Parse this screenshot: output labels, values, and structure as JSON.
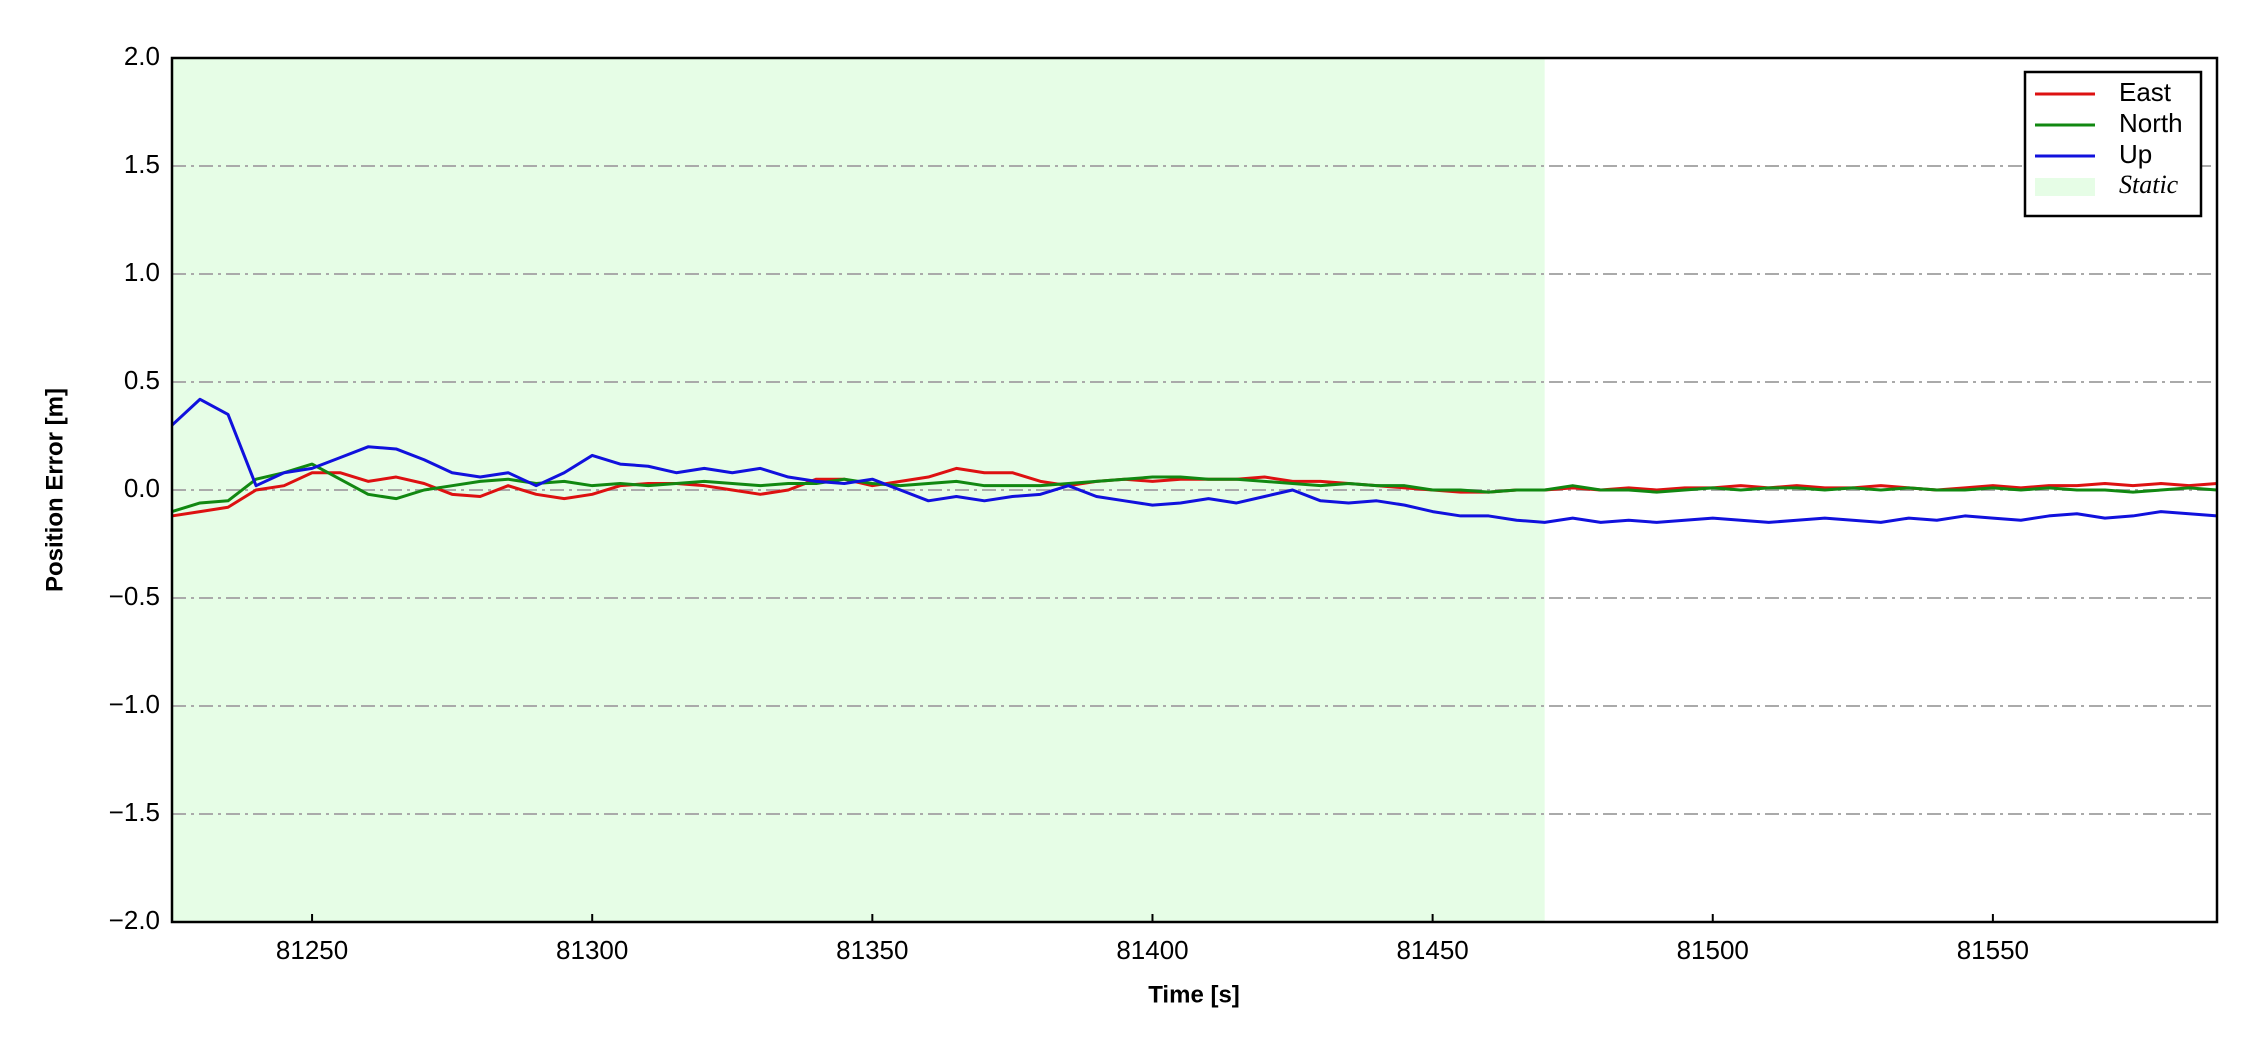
{
  "chart_data": {
    "type": "line",
    "xlabel": "Time [s]",
    "ylabel": "Position Error [m]",
    "x": [
      81225,
      81230,
      81235,
      81240,
      81245,
      81250,
      81255,
      81260,
      81265,
      81270,
      81275,
      81280,
      81285,
      81290,
      81295,
      81300,
      81305,
      81310,
      81315,
      81320,
      81325,
      81330,
      81335,
      81340,
      81345,
      81350,
      81355,
      81360,
      81365,
      81370,
      81375,
      81380,
      81385,
      81390,
      81395,
      81400,
      81405,
      81410,
      81415,
      81420,
      81425,
      81430,
      81435,
      81440,
      81445,
      81450,
      81455,
      81460,
      81465,
      81470,
      81475,
      81480,
      81485,
      81490,
      81495,
      81500,
      81505,
      81510,
      81515,
      81520,
      81525,
      81530,
      81535,
      81540,
      81545,
      81550,
      81555,
      81560,
      81565,
      81570,
      81575,
      81580,
      81585,
      81590
    ],
    "series": [
      {
        "name": "East",
        "color": "#dd1111",
        "values": [
          -0.12,
          -0.1,
          -0.08,
          0.0,
          0.02,
          0.08,
          0.08,
          0.04,
          0.06,
          0.03,
          -0.02,
          -0.03,
          0.02,
          -0.02,
          -0.04,
          -0.02,
          0.02,
          0.03,
          0.03,
          0.02,
          0.0,
          -0.02,
          0.0,
          0.05,
          0.05,
          0.02,
          0.04,
          0.06,
          0.1,
          0.08,
          0.08,
          0.04,
          0.02,
          0.04,
          0.05,
          0.04,
          0.05,
          0.05,
          0.05,
          0.06,
          0.04,
          0.04,
          0.03,
          0.02,
          0.01,
          0.0,
          -0.01,
          -0.01,
          0.0,
          0.0,
          0.01,
          0.0,
          0.01,
          0.0,
          0.01,
          0.01,
          0.02,
          0.01,
          0.02,
          0.01,
          0.01,
          0.02,
          0.01,
          0.0,
          0.01,
          0.02,
          0.01,
          0.02,
          0.02,
          0.03,
          0.02,
          0.03,
          0.02,
          0.03
        ]
      },
      {
        "name": "North",
        "color": "#118811",
        "values": [
          -0.1,
          -0.06,
          -0.05,
          0.05,
          0.08,
          0.12,
          0.05,
          -0.02,
          -0.04,
          0.0,
          0.02,
          0.04,
          0.05,
          0.03,
          0.04,
          0.02,
          0.03,
          0.02,
          0.03,
          0.04,
          0.03,
          0.02,
          0.03,
          0.03,
          0.05,
          0.03,
          0.02,
          0.03,
          0.04,
          0.02,
          0.02,
          0.02,
          0.03,
          0.04,
          0.05,
          0.06,
          0.06,
          0.05,
          0.05,
          0.04,
          0.03,
          0.02,
          0.03,
          0.02,
          0.02,
          0.0,
          0.0,
          -0.01,
          0.0,
          0.0,
          0.02,
          0.0,
          0.0,
          -0.01,
          0.0,
          0.01,
          0.0,
          0.01,
          0.01,
          0.0,
          0.01,
          0.0,
          0.01,
          0.0,
          0.0,
          0.01,
          0.0,
          0.01,
          0.0,
          0.0,
          -0.01,
          0.0,
          0.01,
          0.0
        ]
      },
      {
        "name": "Up",
        "color": "#1111dd",
        "values": [
          0.3,
          0.42,
          0.35,
          0.02,
          0.08,
          0.1,
          0.15,
          0.2,
          0.19,
          0.14,
          0.08,
          0.06,
          0.08,
          0.02,
          0.08,
          0.16,
          0.12,
          0.11,
          0.08,
          0.1,
          0.08,
          0.1,
          0.06,
          0.04,
          0.03,
          0.05,
          0.0,
          -0.05,
          -0.03,
          -0.05,
          -0.03,
          -0.02,
          0.02,
          -0.03,
          -0.05,
          -0.07,
          -0.06,
          -0.04,
          -0.06,
          -0.03,
          0.0,
          -0.05,
          -0.06,
          -0.05,
          -0.07,
          -0.1,
          -0.12,
          -0.12,
          -0.14,
          -0.15,
          -0.13,
          -0.15,
          -0.14,
          -0.15,
          -0.14,
          -0.13,
          -0.14,
          -0.15,
          -0.14,
          -0.13,
          -0.14,
          -0.15,
          -0.13,
          -0.14,
          -0.12,
          -0.13,
          -0.14,
          -0.12,
          -0.11,
          -0.13,
          -0.12,
          -0.1,
          -0.11,
          -0.12
        ]
      }
    ],
    "shaded_span": {
      "name": "Static",
      "x": [
        81225,
        81470
      ],
      "color": "#e6fde6"
    },
    "xlim": [
      81225,
      81590
    ],
    "xticks": [
      81250,
      81300,
      81350,
      81400,
      81450,
      81500,
      81550
    ],
    "ylim": [
      -2,
      2
    ],
    "yticks": [
      {
        "value": -2,
        "label": "−2.0"
      },
      {
        "value": -1.5,
        "label": "−1.5"
      },
      {
        "value": -1,
        "label": "−1.0"
      },
      {
        "value": -0.5,
        "label": "−0.5"
      },
      {
        "value": 0,
        "label": "0.0"
      },
      {
        "value": 0.5,
        "label": "0.5"
      },
      {
        "value": 1,
        "label": "1.0"
      },
      {
        "value": 1.5,
        "label": "1.5"
      },
      {
        "value": 2,
        "label": "2.0"
      }
    ],
    "grid": true,
    "legend": "upper right"
  }
}
